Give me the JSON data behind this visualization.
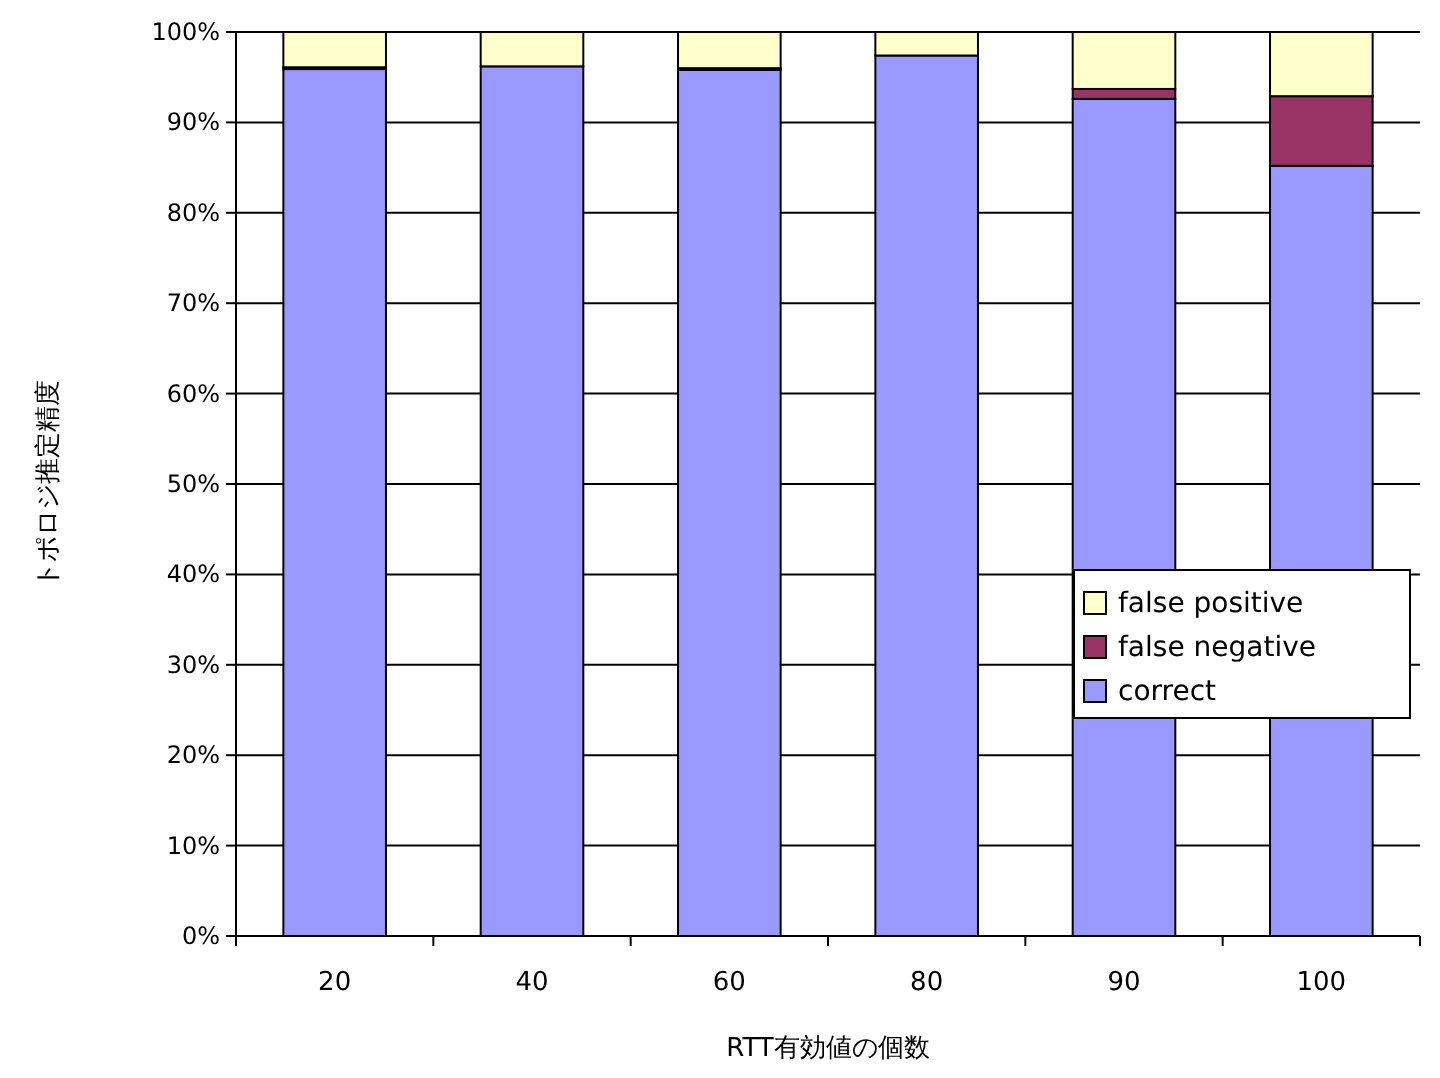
{
  "chart_data": {
    "type": "bar",
    "stacked": true,
    "xlabel": "RTT有効値の個数",
    "ylabel": "トポロジ推定精度",
    "categories": [
      "20",
      "40",
      "60",
      "80",
      "90",
      "100"
    ],
    "series": [
      {
        "name": "correct",
        "color": "#9999ff",
        "values": [
          95.9,
          96.2,
          95.8,
          97.4,
          92.6,
          85.2
        ]
      },
      {
        "name": "false negative",
        "color": "#993366",
        "values": [
          0.2,
          null,
          0.2,
          null,
          1.1,
          7.7
        ]
      },
      {
        "name": "false positive",
        "color": "#ffffcc",
        "values": [
          3.9,
          3.8,
          4.0,
          2.6,
          6.3,
          7.1
        ]
      }
    ],
    "ylim": [
      0,
      100
    ],
    "yticks": [
      {
        "value": 0,
        "label": "0%"
      },
      {
        "value": 10,
        "label": "10%"
      },
      {
        "value": 20,
        "label": "20%"
      },
      {
        "value": 30,
        "label": "30%"
      },
      {
        "value": 40,
        "label": "40%"
      },
      {
        "value": 50,
        "label": "50%"
      },
      {
        "value": 60,
        "label": "60%"
      },
      {
        "value": 70,
        "label": "70%"
      },
      {
        "value": 80,
        "label": "80%"
      },
      {
        "value": 90,
        "label": "90%"
      },
      {
        "value": 100,
        "label": "100%"
      }
    ],
    "grid": "y",
    "legend": "right"
  }
}
